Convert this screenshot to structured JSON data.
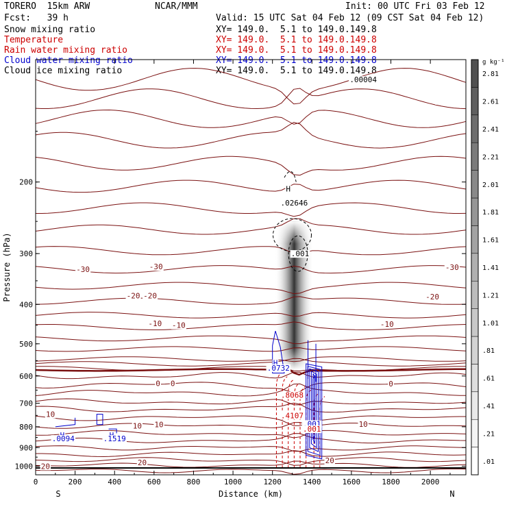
{
  "header": {
    "model": "TORERO  15km ARW",
    "org": "NCAR/MMM",
    "init": "Init: 00 UTC Fri 03 Feb 12",
    "fcst": "Fcst:   39 h",
    "valid": "Valid: 15 UTC Sat 04 Feb 12 (09 CST Sat 04 Feb 12)"
  },
  "fields": [
    {
      "name": "Snow mixing ratio",
      "xy": "",
      "color": "#000000"
    },
    {
      "name": "Temperature",
      "xy": "XY= 149.0.  5.1 to 149.0.149.8",
      "color": "#cc0000"
    },
    {
      "name": "Rain water mixing ratio",
      "xy": "XY= 149.0.  5.1 to 149.0.149.8",
      "color": "#cc0000"
    },
    {
      "name": "Cloud water mixing ratio",
      "xy": "XY= 149.0.  5.1 to 149.0.149.8",
      "color": "#0000cc"
    },
    {
      "name": "Cloud ice mixing ratio",
      "xy": "XY= 149.0.  5.1 to 149.0.149.8",
      "color": "#000000"
    }
  ],
  "snow_xy": "XY= 149.0.  5.1 to 149.0.149.8",
  "colorbar": {
    "unit": "g kg⁻¹",
    "ticks": [
      ".01",
      ".21",
      ".41",
      ".61",
      ".81",
      "1.01",
      "1.21",
      "1.41",
      "1.61",
      "1.81",
      "2.01",
      "2.21",
      "2.41",
      "2.61",
      "2.81"
    ],
    "max": 2.95,
    "fills": [
      "#ffffff",
      "#f4f4f4",
      "#e9e9e9",
      "#dedede",
      "#d3d3d3",
      "#c8c8c8",
      "#bcbcbc",
      "#b0b0b0",
      "#a3a3a3",
      "#969696",
      "#898989",
      "#7b7b7b",
      "#6d6d6d",
      "#5f5f5f",
      "#505050"
    ]
  },
  "chart_data": {
    "type": "contour",
    "xlabel": "Distance (km)",
    "ylabel": "Pressure (hPa)",
    "xlim": [
      0,
      2180
    ],
    "ylim_pressure": [
      1050,
      100
    ],
    "xticks": [
      0,
      200,
      400,
      600,
      800,
      1000,
      1200,
      1400,
      1600,
      1800,
      2000
    ],
    "yticks": [
      200,
      300,
      400,
      500,
      600,
      700,
      800,
      900,
      1000
    ],
    "x_end_labels": {
      "left": "S",
      "right": "N"
    },
    "temperature_labels": [
      {
        "text": "-30",
        "x": 240,
        "p": 328
      },
      {
        "text": "-30",
        "x": 610,
        "p": 323
      },
      {
        "text": "-30",
        "x": 2110,
        "p": 324
      },
      {
        "text": "-20",
        "x": 495,
        "p": 381
      },
      {
        "text": "-20",
        "x": 580,
        "p": 381
      },
      {
        "text": "-20",
        "x": 2010,
        "p": 383
      },
      {
        "text": "-10",
        "x": 605,
        "p": 445
      },
      {
        "text": "-10",
        "x": 725,
        "p": 450
      },
      {
        "text": "-10",
        "x": 1780,
        "p": 447
      },
      {
        "text": "0",
        "x": 620,
        "p": 625
      },
      {
        "text": "0",
        "x": 695,
        "p": 625
      },
      {
        "text": "0",
        "x": 1800,
        "p": 627
      },
      {
        "text": "10",
        "x": 75,
        "p": 745
      },
      {
        "text": "10",
        "x": 515,
        "p": 795
      },
      {
        "text": "10",
        "x": 625,
        "p": 790
      },
      {
        "text": "10",
        "x": 1660,
        "p": 788
      },
      {
        "text": "20",
        "x": 50,
        "p": 1000
      },
      {
        "text": "20",
        "x": 540,
        "p": 980
      },
      {
        "text": "20",
        "x": 1490,
        "p": 968
      }
    ],
    "other_labels": [
      {
        "text": "H",
        "x": 1280,
        "p": 208,
        "field": "cloud_ice"
      },
      {
        "text": ".02646",
        "x": 1310,
        "p": 225,
        "field": "cloud_ice"
      },
      {
        "text": ".001",
        "x": 1340,
        "p": 300,
        "field": "cloud_ice"
      },
      {
        "text": ".00004",
        "x": 1660,
        "p": 112,
        "field": "cloud_ice"
      },
      {
        "text": "H",
        "x": 1215,
        "p": 557,
        "field": "cloud_water"
      },
      {
        "text": ".0732",
        "x": 1230,
        "p": 573,
        "field": "cloud_water"
      },
      {
        "text": ".8068",
        "x": 1300,
        "p": 668,
        "field": "rain_water"
      },
      {
        "text": ".4107",
        "x": 1300,
        "p": 750,
        "field": "rain_water"
      },
      {
        "text": ".001",
        "x": 1400,
        "p": 786,
        "field": "cloud_water"
      },
      {
        "text": ".001",
        "x": 1400,
        "p": 810,
        "field": "rain_water"
      },
      {
        "text": "H",
        "x": 135,
        "p": 838,
        "field": "cloud_water"
      },
      {
        "text": ".0094",
        "x": 140,
        "p": 855,
        "field": "cloud_water"
      },
      {
        "text": "H",
        "x": 385,
        "p": 838,
        "field": "cloud_water"
      },
      {
        "text": ".1519",
        "x": 400,
        "p": 855,
        "field": "cloud_water"
      }
    ],
    "snow_max": 2.9,
    "snow_column": {
      "x_center": 1310,
      "p_top": 250,
      "p_bottom": 580
    }
  }
}
